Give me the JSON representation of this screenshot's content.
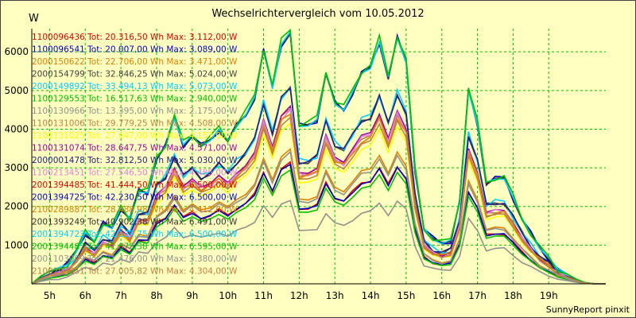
{
  "chart_data": {
    "type": "line",
    "title": "Wechselrichtervergleich vom 10.05.2012",
    "ylabel": "W",
    "xlabel": "",
    "credit": "SunnyReport pinxit",
    "ylim": [
      0,
      6600
    ],
    "yticks": [
      1000,
      2000,
      3000,
      4000,
      5000,
      6000
    ],
    "xlim": [
      4.5,
      20.6
    ],
    "xticks": [
      5,
      6,
      7,
      8,
      9,
      10,
      11,
      12,
      13,
      14,
      15,
      16,
      17,
      18,
      19
    ],
    "xticklabels": [
      "5h",
      "6h",
      "7h",
      "8h",
      "9h",
      "10h",
      "11h",
      "12h",
      "13h",
      "14h",
      "15h",
      "16h",
      "17h",
      "18h",
      "19h"
    ],
    "grid": true,
    "legend_location": "top-left",
    "profile": {
      "x": [
        4.5,
        4.75,
        5.0,
        5.25,
        5.5,
        5.75,
        6.0,
        6.25,
        6.5,
        6.75,
        7.0,
        7.25,
        7.5,
        7.75,
        8.0,
        8.25,
        8.5,
        8.75,
        9.0,
        9.25,
        9.5,
        9.75,
        10.0,
        10.25,
        10.5,
        10.75,
        11.0,
        11.25,
        11.5,
        11.75,
        12.0,
        12.25,
        12.5,
        12.75,
        13.0,
        13.25,
        13.5,
        13.75,
        14.0,
        14.25,
        14.5,
        14.75,
        15.0,
        15.25,
        15.5,
        15.75,
        16.0,
        16.25,
        16.5,
        16.75,
        17.0,
        17.25,
        17.5,
        17.75,
        18.0,
        18.25,
        18.5,
        18.75,
        19.0,
        19.25,
        19.5,
        19.75,
        20.0,
        20.3,
        20.6
      ],
      "shape": [
        0.0,
        0.03,
        0.05,
        0.06,
        0.08,
        0.13,
        0.2,
        0.17,
        0.24,
        0.22,
        0.3,
        0.26,
        0.37,
        0.36,
        0.5,
        0.55,
        0.66,
        0.55,
        0.59,
        0.55,
        0.57,
        0.61,
        0.57,
        0.63,
        0.67,
        0.74,
        0.93,
        0.78,
        0.95,
        1.0,
        0.63,
        0.63,
        0.65,
        0.84,
        0.72,
        0.69,
        0.76,
        0.84,
        0.86,
        0.96,
        0.82,
        0.98,
        0.88,
        0.45,
        0.22,
        0.18,
        0.16,
        0.17,
        0.33,
        0.77,
        0.63,
        0.4,
        0.42,
        0.42,
        0.34,
        0.26,
        0.2,
        0.14,
        0.1,
        0.06,
        0.04,
        0.02,
        0.005,
        0.0,
        0.0
      ]
    },
    "series": [
      {
        "id": "1100096436",
        "tot": "20.316,50",
        "max": "3.112,00",
        "color": "#e00000",
        "peak": 3112
      },
      {
        "id": "1100096541",
        "tot": "20.007,00",
        "max": "3.089,00",
        "color": "#0000c0",
        "peak": 3089
      },
      {
        "id": "2000150622",
        "tot": "22.706,00",
        "max": "3.471,00",
        "color": "#e08000",
        "peak": 3471
      },
      {
        "id": "2000154799",
        "tot": "32.846,25",
        "max": "5.024,00",
        "color": "#404040",
        "peak": 5024
      },
      {
        "id": "2000149892",
        "tot": "33.494,13",
        "max": "5.073,00",
        "color": "#00d0ff",
        "peak": 5073
      },
      {
        "id": "1100129553",
        "tot": "16.517,63",
        "max": "2.940,00",
        "color": "#00c000",
        "peak": 2940
      },
      {
        "id": "1100130966",
        "tot": "13.395,00",
        "max": "2.175,00",
        "color": "#909090",
        "peak": 2175
      },
      {
        "id": "1100131006",
        "tot": "29.779,25",
        "max": "4.508,00",
        "color": "#c08040",
        "peak": 4508
      },
      {
        "id": "1100131025",
        "tot": "27.647,00",
        "max": "4.157,00",
        "color": "#ffff00",
        "peak": 4157
      },
      {
        "id": "1100131074",
        "tot": "28.647,75",
        "max": "4.571,00",
        "color": "#a000a0",
        "peak": 4571
      },
      {
        "id": "2000001478",
        "tot": "32.812,50",
        "max": "5.030,00",
        "color": "#202080",
        "peak": 5030
      },
      {
        "id": "1100213451",
        "tot": "27.546,50",
        "max": "4.485,00",
        "color": "#e080e0",
        "peak": 4485
      },
      {
        "id": "2001394485",
        "tot": "41.444,50",
        "max": "6.500,00",
        "color": "#e00000",
        "peak": 6500
      },
      {
        "id": "2001394725",
        "tot": "42.230,50",
        "max": "6.500,00",
        "color": "#0000c0",
        "peak": 6500
      },
      {
        "id": "2100289887",
        "tot": "28.488,98",
        "max": "4.412,00",
        "color": "#e08000",
        "peak": 4412
      },
      {
        "id": "2001393249",
        "tot": "40.902,38",
        "max": "6.491,00",
        "color": "#303030",
        "peak": 6491
      },
      {
        "id": "2001394723",
        "tot": "42.139,75",
        "max": "6.500,00",
        "color": "#00d0ff",
        "peak": 6500
      },
      {
        "id": "2001394487",
        "tot": "41.675,38",
        "max": "6.595,00",
        "color": "#00c000",
        "peak": 6595
      },
      {
        "id": "2001103009",
        "tot": "21.476,00",
        "max": "3.380,00",
        "color": "#909090",
        "peak": 3380
      },
      {
        "id": "2100295651",
        "tot": "27.005,82",
        "max": "4.304,00",
        "color": "#c08040",
        "peak": 4304
      }
    ]
  }
}
